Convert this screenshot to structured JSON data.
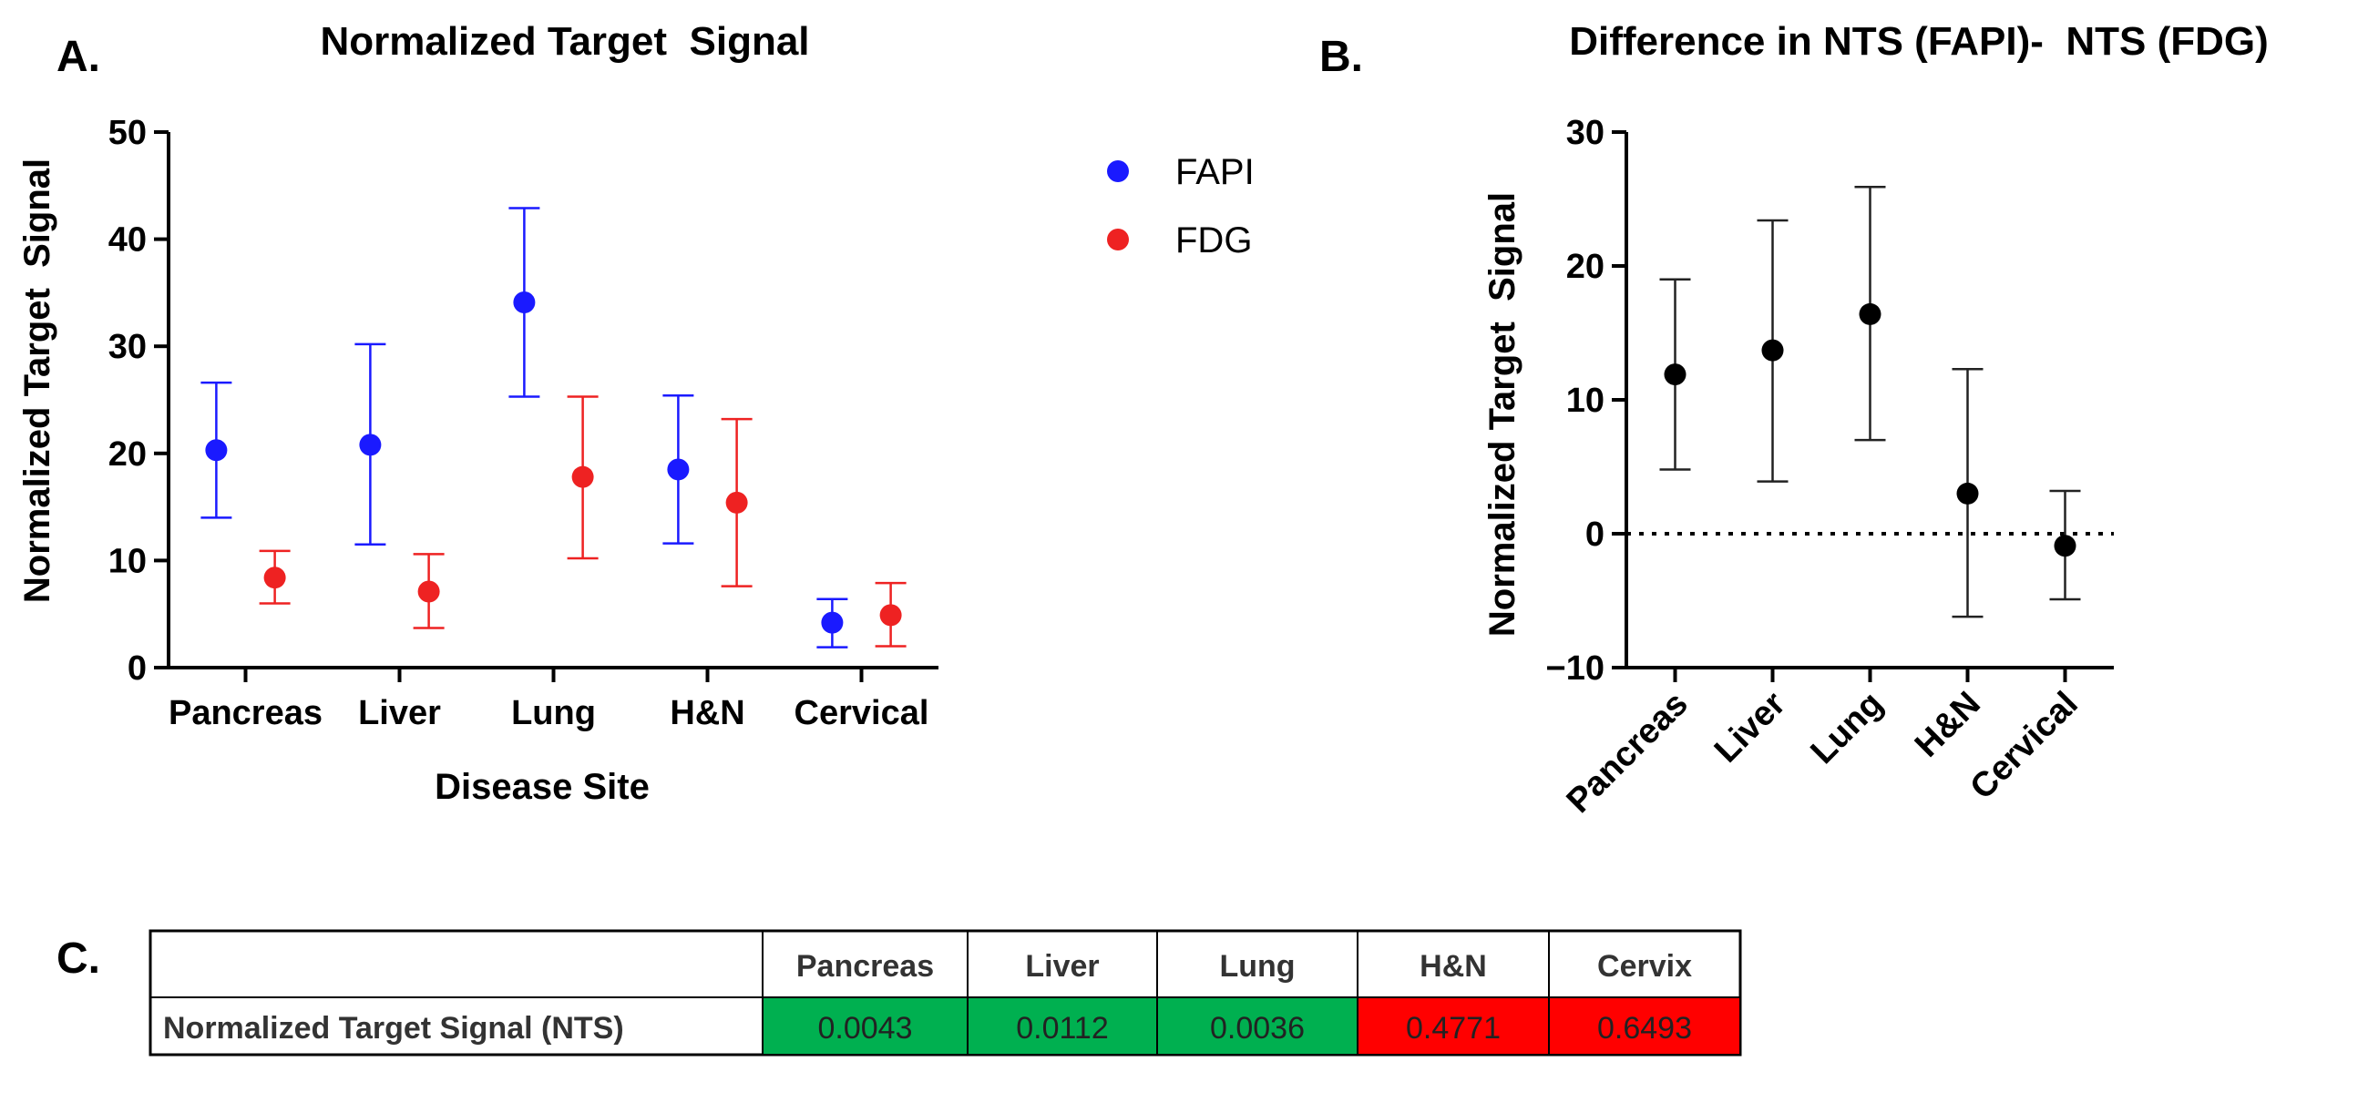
{
  "panels": {
    "a_label": "A.",
    "b_label": "B.",
    "c_label": "C."
  },
  "chart_data": [
    {
      "type": "scatter",
      "title": "Normalized Target  Signal",
      "xlabel": "Disease Site",
      "ylabel": "Normalized Target  Signal",
      "ylim": [
        0,
        50
      ],
      "yticks": [
        "0",
        "10",
        "20",
        "30",
        "40",
        "50"
      ],
      "categories": [
        "Pancreas",
        "Liver",
        "Lung",
        "H&N",
        "Cervical"
      ],
      "legend_position": "top-right",
      "series": [
        {
          "name": "FAPI",
          "color": "#1a1aff",
          "values": [
            20.3,
            20.8,
            34.1,
            18.5,
            4.2
          ],
          "err_low": [
            14.0,
            11.5,
            25.3,
            11.6,
            1.9
          ],
          "err_high": [
            26.6,
            30.2,
            42.9,
            25.4,
            6.4
          ]
        },
        {
          "name": "FDG",
          "color": "#ee2222",
          "values": [
            8.4,
            7.1,
            17.8,
            15.4,
            4.9
          ],
          "err_low": [
            6.0,
            3.7,
            10.2,
            7.6,
            2.0
          ],
          "err_high": [
            10.9,
            10.6,
            25.3,
            23.2,
            7.9
          ]
        }
      ]
    },
    {
      "type": "scatter",
      "title": "Difference in NTS (FAPI)-  NTS (FDG)",
      "xlabel": "",
      "ylabel": "Normalized Target  Signal",
      "ylim": [
        -10,
        30
      ],
      "yticks": [
        "−10",
        "0",
        "10",
        "20",
        "30"
      ],
      "categories": [
        "Pancreas",
        "Liver",
        "Lung",
        "H&N",
        "Cervical"
      ],
      "reference_line": 0,
      "series": [
        {
          "name": "Difference",
          "color": "#000000",
          "values": [
            11.9,
            13.7,
            16.4,
            3.0,
            -0.9
          ],
          "err_low": [
            4.8,
            3.9,
            7.0,
            -6.2,
            -4.9
          ],
          "err_high": [
            19.0,
            23.4,
            25.9,
            12.3,
            3.2
          ]
        }
      ]
    },
    {
      "type": "table",
      "columns": [
        "",
        "Pancreas",
        "Liver",
        "Lung",
        "H&N",
        "Cervix"
      ],
      "rows": [
        {
          "label": "Normalized Target Signal (NTS)",
          "values": [
            "0.0043",
            "0.0112",
            "0.0036",
            "0.4771",
            "0.6493"
          ],
          "colors": [
            "#00b050",
            "#00b050",
            "#00b050",
            "#ff0000",
            "#ff0000"
          ]
        }
      ]
    }
  ]
}
